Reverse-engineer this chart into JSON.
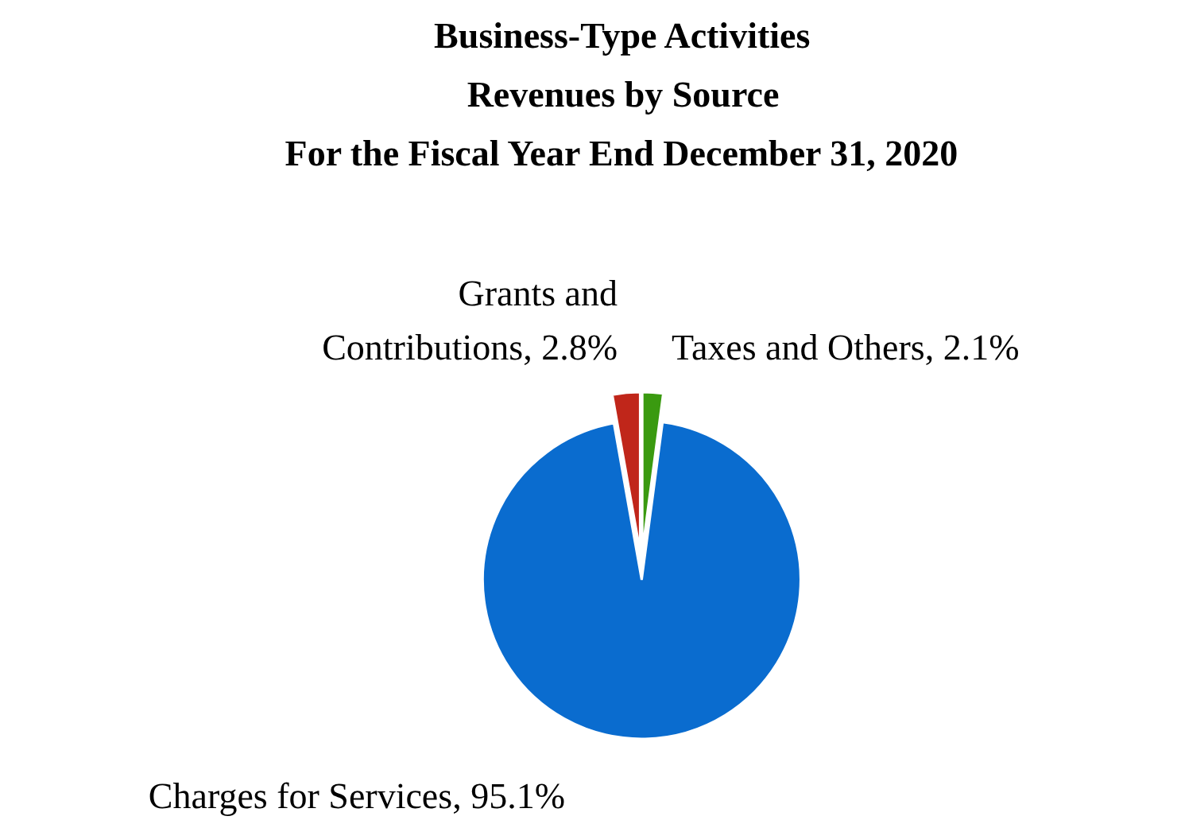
{
  "chart_data": {
    "type": "pie",
    "title": "Business-Type Activities\nRevenues by Source\nFor the Fiscal Year End December 31, 2020",
    "categories": [
      "Taxes and Others, 2.1%",
      "Charges for Services, 95.1%",
      "Grants and Contributions, 2.8%"
    ],
    "values": [
      2.1,
      95.1,
      2.8
    ],
    "colors": [
      "#3a9a10",
      "#0a6ccf",
      "#c0261a"
    ]
  }
}
